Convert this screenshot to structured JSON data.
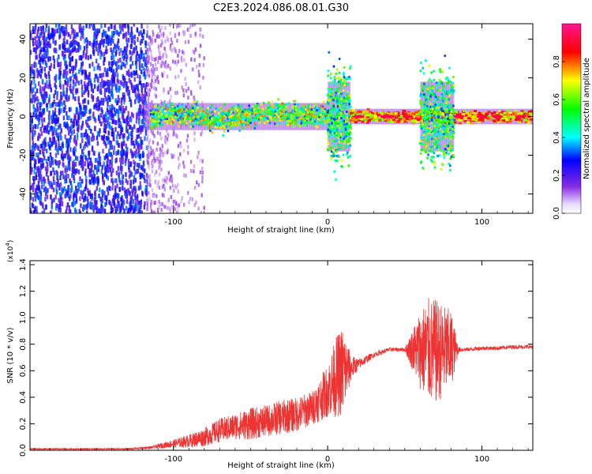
{
  "title": "C2E3.2024.086.08.01.G30",
  "chart_data": [
    {
      "type": "heatmap",
      "xlabel": "Height of straight line (km)",
      "ylabel": "Frequency (Hz)",
      "xlim": [
        -193,
        133
      ],
      "ylim": [
        -50,
        48
      ],
      "x_ticks": [
        -100,
        0,
        100
      ],
      "x_tick_labels": [
        "-100",
        "0",
        "100"
      ],
      "y_ticks": [
        -40,
        -20,
        0,
        20,
        40
      ],
      "y_tick_labels": [
        "-40",
        "-20",
        "0",
        "20",
        "40"
      ],
      "colorbar": {
        "label": "Normalized spectral amplitude",
        "range": [
          0,
          1
        ],
        "ticks": [
          0.0,
          0.2,
          0.4,
          0.6,
          0.8
        ],
        "tick_labels": [
          "0.0",
          "0.2",
          "0.4",
          "0.6",
          "0.8"
        ],
        "colors": [
          "#ffffff",
          "#8a2be2",
          "#0000ff",
          "#00ffff",
          "#00ff00",
          "#ffff00",
          "#ff0000",
          "#ff1493"
        ]
      },
      "regions": [
        {
          "x": [
            -193,
            -117
          ],
          "freq_spread": 50,
          "amplitude": [
            0.15,
            0.35
          ],
          "description_color": "#8a2be2"
        },
        {
          "x": [
            -117,
            -80
          ],
          "freq_spread": 50,
          "amplitude": [
            0.0,
            0.12
          ]
        },
        {
          "x": [
            -115,
            0
          ],
          "center_freq": [
            0,
            2
          ],
          "band_width": 6,
          "amplitude": [
            0.3,
            0.8
          ]
        },
        {
          "x": [
            0,
            15
          ],
          "center_freq": 0,
          "band_width": 25,
          "amplitude": [
            0.3,
            0.7
          ]
        },
        {
          "x": [
            15,
            133
          ],
          "center_freq": 0,
          "band_width": 3,
          "amplitude": [
            0.6,
            0.95
          ]
        },
        {
          "x": [
            60,
            82
          ],
          "center_freq": 0,
          "band_width": 25,
          "amplitude": [
            0.3,
            0.7
          ]
        }
      ]
    },
    {
      "type": "line",
      "xlabel": "Height of straight line (km)",
      "ylabel": "SNR (10 * v/v)",
      "y_multiplier_label": "(x10",
      "y_multiplier_exponent": "4",
      "xlim": [
        -193,
        133
      ],
      "ylim": [
        0,
        1.43
      ],
      "x_ticks": [
        -100,
        0,
        100
      ],
      "x_tick_labels": [
        "-100",
        "0",
        "100"
      ],
      "y_ticks": [
        0.0,
        0.2,
        0.4,
        0.6,
        0.8,
        1.0,
        1.2,
        1.4
      ],
      "y_tick_labels": [
        "0.0",
        "0.2",
        "0.4",
        "0.6",
        "0.8",
        "1.0",
        "1.2",
        "1.4"
      ],
      "color": "#ee3333",
      "series": [
        {
          "x": [
            -193,
            -160,
            -130,
            -115,
            -100,
            -90,
            -80,
            -70,
            -60,
            -50,
            -40,
            -30,
            -20,
            -10,
            0,
            5,
            10,
            15,
            20,
            30,
            40,
            50,
            60,
            65,
            70,
            75,
            80,
            85,
            90,
            100,
            110,
            120,
            133
          ],
          "values": [
            0.01,
            0.01,
            0.01,
            0.02,
            0.05,
            0.07,
            0.1,
            0.15,
            0.18,
            0.2,
            0.22,
            0.25,
            0.27,
            0.32,
            0.45,
            0.55,
            0.6,
            0.62,
            0.65,
            0.72,
            0.76,
            0.76,
            0.76,
            0.75,
            0.74,
            0.75,
            0.76,
            0.76,
            0.76,
            0.77,
            0.77,
            0.78,
            0.78
          ],
          "noise": [
            0.004,
            0.004,
            0.005,
            0.01,
            0.03,
            0.05,
            0.07,
            0.09,
            0.1,
            0.12,
            0.12,
            0.13,
            0.13,
            0.13,
            0.2,
            0.3,
            0.35,
            0.1,
            0.04,
            0.02,
            0.015,
            0.015,
            0.3,
            0.4,
            0.4,
            0.35,
            0.3,
            0.02,
            0.015,
            0.015,
            0.015,
            0.015,
            0.015
          ]
        }
      ]
    }
  ]
}
